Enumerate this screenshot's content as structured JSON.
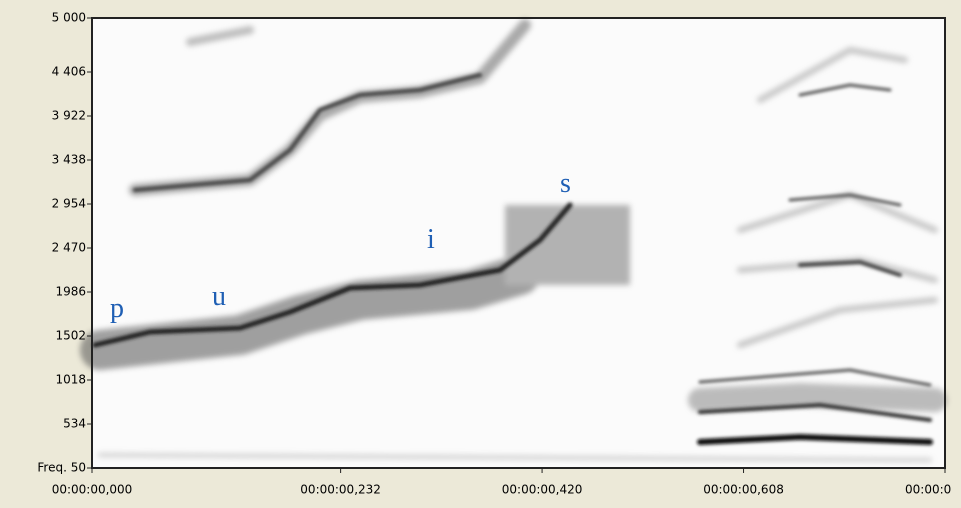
{
  "chart_data": {
    "type": "spectrogram",
    "annotations": [
      "p",
      "u",
      "i",
      "s"
    ],
    "xlim": [
      0,
      0.796
    ],
    "xticks": [
      {
        "value": 0,
        "label": "00:00:00,000"
      },
      {
        "value": 0.232,
        "label": "00:00:00,232"
      },
      {
        "value": 0.42,
        "label": "00:00:00,420"
      },
      {
        "value": 0.608,
        "label": "00:00:00,608"
      },
      {
        "value": 0.796,
        "label": "00:00:0"
      }
    ],
    "ylim": [
      50,
      5000
    ],
    "yticks": [
      {
        "value": 50,
        "label": "Freq. 50"
      },
      {
        "value": 534,
        "label": "534"
      },
      {
        "value": 1018,
        "label": "1018"
      },
      {
        "value": 1502,
        "label": "1502"
      },
      {
        "value": 1986,
        "label": "1986"
      },
      {
        "value": 2470,
        "label": "2 470"
      },
      {
        "value": 2954,
        "label": "2 954"
      },
      {
        "value": 3438,
        "label": "3 438"
      },
      {
        "value": 3922,
        "label": "3 922"
      },
      {
        "value": 4406,
        "label": "4 406"
      },
      {
        "value": 5000,
        "label": "5 000"
      }
    ]
  }
}
